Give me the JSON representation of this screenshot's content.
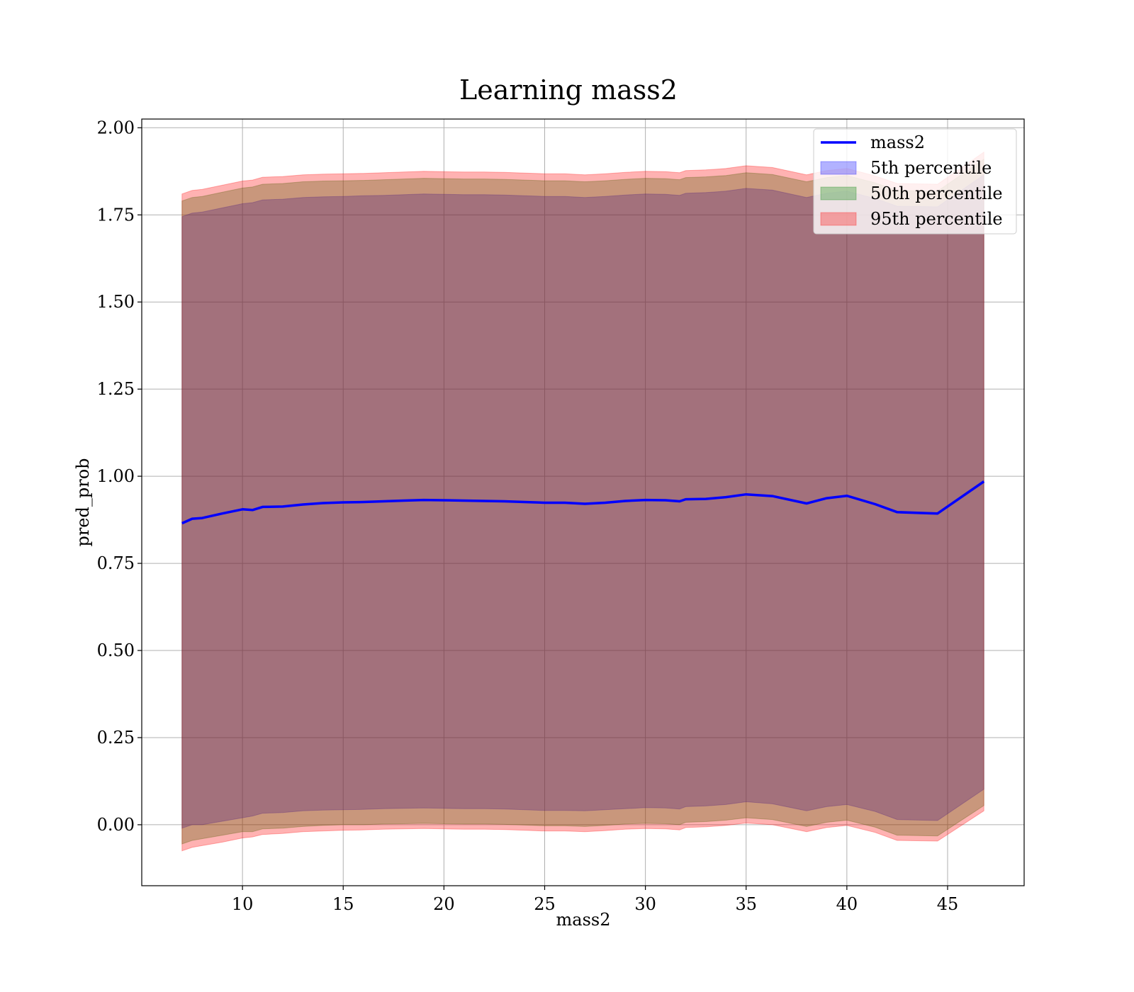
{
  "chart_data": {
    "type": "line",
    "title": "Learning mass2",
    "xlabel": "mass2",
    "ylabel": "pred_prob",
    "xlim": [
      5.0,
      48.8
    ],
    "ylim": [
      -0.175,
      2.025
    ],
    "x_ticks": [
      10,
      15,
      20,
      25,
      30,
      35,
      40,
      45
    ],
    "x_tick_labels": [
      "10",
      "15",
      "20",
      "25",
      "30",
      "35",
      "40",
      "45"
    ],
    "y_ticks": [
      0.0,
      0.25,
      0.5,
      0.75,
      1.0,
      1.25,
      1.5,
      1.75,
      2.0
    ],
    "y_tick_labels": [
      "0.00",
      "0.25",
      "0.50",
      "0.75",
      "1.00",
      "1.25",
      "1.50",
      "1.75",
      "2.00"
    ],
    "grid": true,
    "legend_position": "top-right",
    "x": [
      7.0,
      7.5,
      8.0,
      9.0,
      10.0,
      10.5,
      11.0,
      12.0,
      13.0,
      14.0,
      15.0,
      16.0,
      17.0,
      18.0,
      19.0,
      20.0,
      21.0,
      22.0,
      23.0,
      24.0,
      25.0,
      26.0,
      27.0,
      28.0,
      29.0,
      30.0,
      31.0,
      31.7,
      32.0,
      33.0,
      34.0,
      35.0,
      36.3,
      38.0,
      39.0,
      40.0,
      41.4,
      42.5,
      44.5,
      46.8
    ],
    "series": [
      {
        "name": "mass2",
        "kind": "line",
        "color": "#0000ff",
        "values": [
          0.865,
          0.878,
          0.88,
          0.893,
          0.905,
          0.903,
          0.912,
          0.913,
          0.919,
          0.923,
          0.925,
          0.926,
          0.928,
          0.93,
          0.932,
          0.931,
          0.93,
          0.929,
          0.928,
          0.926,
          0.924,
          0.924,
          0.921,
          0.924,
          0.929,
          0.932,
          0.931,
          0.928,
          0.934,
          0.935,
          0.94,
          0.948,
          0.943,
          0.922,
          0.937,
          0.944,
          0.92,
          0.897,
          0.893,
          0.985
        ]
      },
      {
        "name": "5th percentile",
        "kind": "band",
        "color": "#0000ff",
        "opacity": 0.3,
        "lower": [
          -0.01,
          0.0,
          0.0,
          0.01,
          0.02,
          0.025,
          0.033,
          0.035,
          0.04,
          0.042,
          0.043,
          0.044,
          0.046,
          0.047,
          0.048,
          0.047,
          0.046,
          0.046,
          0.045,
          0.043,
          0.041,
          0.041,
          0.04,
          0.043,
          0.046,
          0.049,
          0.048,
          0.045,
          0.052,
          0.054,
          0.058,
          0.066,
          0.06,
          0.04,
          0.052,
          0.058,
          0.038,
          0.015,
          0.012,
          0.102
        ],
        "upper": [
          1.745,
          1.755,
          1.758,
          1.77,
          1.782,
          1.785,
          1.793,
          1.795,
          1.8,
          1.802,
          1.803,
          1.805,
          1.806,
          1.808,
          1.81,
          1.809,
          1.808,
          1.808,
          1.807,
          1.805,
          1.803,
          1.803,
          1.8,
          1.803,
          1.807,
          1.81,
          1.809,
          1.806,
          1.812,
          1.814,
          1.818,
          1.826,
          1.821,
          1.8,
          1.812,
          1.818,
          1.797,
          1.775,
          1.773,
          1.865
        ]
      },
      {
        "name": "50th percentile",
        "kind": "band",
        "color": "#008000",
        "opacity": 0.3,
        "lower": [
          -0.055,
          -0.045,
          -0.04,
          -0.03,
          -0.02,
          -0.02,
          -0.012,
          -0.01,
          -0.005,
          -0.002,
          0.0,
          0.0,
          0.002,
          0.003,
          0.004,
          0.003,
          0.002,
          0.002,
          0.001,
          -0.001,
          -0.003,
          -0.003,
          -0.005,
          -0.002,
          0.002,
          0.004,
          0.003,
          0.0,
          0.007,
          0.009,
          0.013,
          0.02,
          0.015,
          -0.005,
          0.007,
          0.013,
          -0.007,
          -0.03,
          -0.032,
          0.055
        ],
        "upper": [
          1.79,
          1.8,
          1.803,
          1.815,
          1.827,
          1.83,
          1.838,
          1.84,
          1.845,
          1.847,
          1.848,
          1.849,
          1.851,
          1.853,
          1.855,
          1.854,
          1.853,
          1.853,
          1.852,
          1.85,
          1.848,
          1.848,
          1.845,
          1.848,
          1.852,
          1.855,
          1.854,
          1.851,
          1.857,
          1.859,
          1.863,
          1.871,
          1.866,
          1.845,
          1.857,
          1.863,
          1.842,
          1.82,
          1.818,
          1.91
        ]
      },
      {
        "name": "95th percentile",
        "kind": "band",
        "color": "#ff0000",
        "opacity": 0.3,
        "lower": [
          -0.075,
          -0.065,
          -0.06,
          -0.05,
          -0.038,
          -0.035,
          -0.028,
          -0.025,
          -0.02,
          -0.018,
          -0.016,
          -0.015,
          -0.013,
          -0.012,
          -0.011,
          -0.012,
          -0.013,
          -0.013,
          -0.014,
          -0.016,
          -0.018,
          -0.018,
          -0.02,
          -0.017,
          -0.013,
          -0.011,
          -0.012,
          -0.015,
          -0.008,
          -0.006,
          -0.002,
          0.005,
          0.0,
          -0.02,
          -0.008,
          -0.002,
          -0.022,
          -0.045,
          -0.047,
          0.04
        ],
        "upper": [
          1.81,
          1.82,
          1.823,
          1.835,
          1.847,
          1.85,
          1.858,
          1.86,
          1.865,
          1.867,
          1.868,
          1.869,
          1.871,
          1.873,
          1.875,
          1.874,
          1.873,
          1.873,
          1.872,
          1.87,
          1.868,
          1.868,
          1.865,
          1.868,
          1.872,
          1.875,
          1.874,
          1.871,
          1.877,
          1.879,
          1.883,
          1.891,
          1.886,
          1.865,
          1.877,
          1.883,
          1.862,
          1.84,
          1.838,
          1.93
        ]
      }
    ],
    "legend": [
      {
        "label": "mass2",
        "kind": "line",
        "color": "#0000ff"
      },
      {
        "label": "5th percentile",
        "kind": "band",
        "color": "#0000ff"
      },
      {
        "label": "50th percentile",
        "kind": "band",
        "color": "#008000"
      },
      {
        "label": "95th percentile",
        "kind": "band",
        "color": "#ff0000"
      }
    ]
  }
}
